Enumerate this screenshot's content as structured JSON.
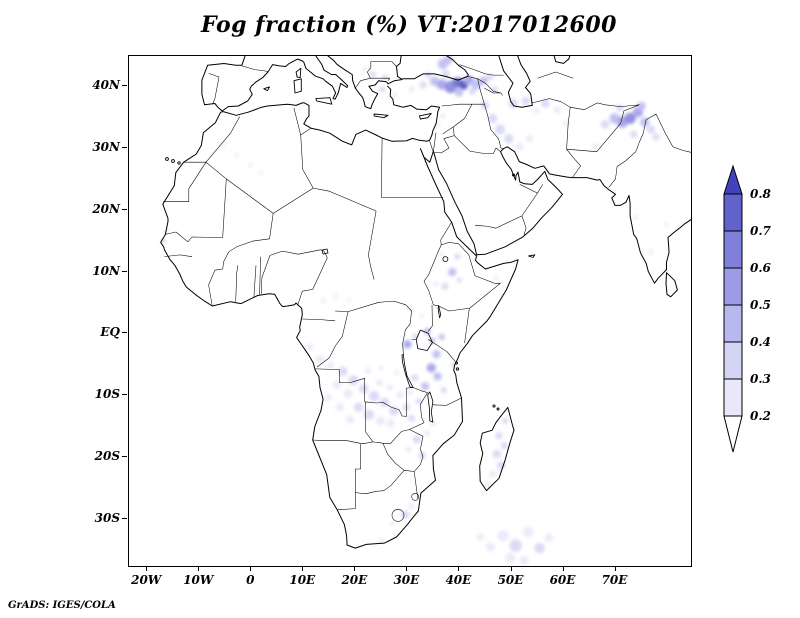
{
  "header": {
    "title": "Fog fraction (%) VT:2017012600"
  },
  "footer": {
    "credit": "GrADS: IGES/COLA"
  },
  "chart_data": {
    "type": "heatmap",
    "projection": "latlon",
    "title": "Fog fraction (%) VT:2017012600",
    "variable": "Fog fraction",
    "units": "%",
    "valid_time": "2017012600",
    "lon_ticks": [
      "20W",
      "10W",
      "0",
      "10E",
      "20E",
      "30E",
      "40E",
      "50E",
      "60E",
      "70E"
    ],
    "lon_tick_values": [
      -20,
      -10,
      0,
      10,
      20,
      30,
      40,
      50,
      60,
      70
    ],
    "lat_ticks": [
      "40N",
      "30N",
      "20N",
      "10N",
      "EQ",
      "10S",
      "20S",
      "30S"
    ],
    "lat_tick_values": [
      40,
      30,
      20,
      10,
      0,
      -10,
      -20,
      -30
    ],
    "lon_range": [
      -23.5,
      84.5
    ],
    "lat_range": [
      -37.7,
      44.9
    ],
    "grid": false,
    "colorbar": {
      "levels": [
        0.2,
        0.3,
        0.4,
        0.5,
        0.6,
        0.7,
        0.8
      ],
      "segments": [
        "#e8e8f8",
        "#d4d4f4",
        "#b8b8ee",
        "#9c9ce6",
        "#8080da",
        "#6262cc"
      ],
      "color_above": "#4242bc",
      "color_below": "#ffffff"
    },
    "fog_points_format": [
      "lon",
      "lat",
      "radius_deg",
      "fog_fraction"
    ],
    "fog_points": [
      [
        33.0,
        40.2,
        0.7,
        0.3
      ],
      [
        35.2,
        40.8,
        0.9,
        0.4
      ],
      [
        36.6,
        40.3,
        1.0,
        0.5
      ],
      [
        38.3,
        39.9,
        1.2,
        0.6
      ],
      [
        39.6,
        40.6,
        1.0,
        0.7
      ],
      [
        40.8,
        40.2,
        0.9,
        0.8
      ],
      [
        41.8,
        41.0,
        0.9,
        0.5
      ],
      [
        43.2,
        40.3,
        1.0,
        0.45
      ],
      [
        44.6,
        40.9,
        0.8,
        0.4
      ],
      [
        37.4,
        41.9,
        0.8,
        0.35
      ],
      [
        39.9,
        39.0,
        0.8,
        0.4
      ],
      [
        42.5,
        39.2,
        0.7,
        0.35
      ],
      [
        36.8,
        43.6,
        1.0,
        0.45
      ],
      [
        37.8,
        44.3,
        0.9,
        0.4
      ],
      [
        34.0,
        41.8,
        0.6,
        0.3
      ],
      [
        30.8,
        39.5,
        0.6,
        0.25
      ],
      [
        27.5,
        38.5,
        0.5,
        0.25
      ],
      [
        25.2,
        39.5,
        0.6,
        0.3
      ],
      [
        23.4,
        41.9,
        0.6,
        0.3
      ],
      [
        25.8,
        41.4,
        0.6,
        0.3
      ],
      [
        21.8,
        42.8,
        0.5,
        0.25
      ],
      [
        45.8,
        41.5,
        0.7,
        0.35
      ],
      [
        46.8,
        39.5,
        0.6,
        0.3
      ],
      [
        44.9,
        36.9,
        0.8,
        0.35
      ],
      [
        46.4,
        34.8,
        0.9,
        0.3
      ],
      [
        47.8,
        33.0,
        1.0,
        0.3
      ],
      [
        49.5,
        31.5,
        0.9,
        0.3
      ],
      [
        51.5,
        30.2,
        0.8,
        0.25
      ],
      [
        53.5,
        31.5,
        0.7,
        0.25
      ],
      [
        50.3,
        37.2,
        0.9,
        0.35
      ],
      [
        52.8,
        37.6,
        0.8,
        0.3
      ],
      [
        56.5,
        37.2,
        0.8,
        0.3
      ],
      [
        58.8,
        36.2,
        0.7,
        0.25
      ],
      [
        54.8,
        36.0,
        0.6,
        0.25
      ],
      [
        60.5,
        34.0,
        0.6,
        0.25
      ],
      [
        66.2,
        30.2,
        0.7,
        0.25
      ],
      [
        68.0,
        33.8,
        0.8,
        0.3
      ],
      [
        69.8,
        34.8,
        1.0,
        0.4
      ],
      [
        71.3,
        34.2,
        1.1,
        0.55
      ],
      [
        72.8,
        34.8,
        1.1,
        0.6
      ],
      [
        74.3,
        35.8,
        1.0,
        0.5
      ],
      [
        75.6,
        34.2,
        0.9,
        0.45
      ],
      [
        76.8,
        33.0,
        0.8,
        0.35
      ],
      [
        77.8,
        31.8,
        0.7,
        0.3
      ],
      [
        73.5,
        32.2,
        0.7,
        0.3
      ],
      [
        75.0,
        36.8,
        0.8,
        0.4
      ],
      [
        70.8,
        36.5,
        0.7,
        0.3
      ],
      [
        35.8,
        33.8,
        0.5,
        0.25
      ],
      [
        36.8,
        35.2,
        0.5,
        0.25
      ],
      [
        37.2,
        7.6,
        0.7,
        0.35
      ],
      [
        38.6,
        9.9,
        0.8,
        0.4
      ],
      [
        39.6,
        12.4,
        0.6,
        0.3
      ],
      [
        36.5,
        12.8,
        0.5,
        0.25
      ],
      [
        40.0,
        8.6,
        0.5,
        0.3
      ],
      [
        35.4,
        8.0,
        0.5,
        0.25
      ],
      [
        30.0,
        -1.8,
        0.8,
        0.5
      ],
      [
        31.5,
        -0.5,
        0.6,
        0.35
      ],
      [
        33.8,
        0.3,
        0.7,
        0.45
      ],
      [
        34.8,
        -1.2,
        0.6,
        0.4
      ],
      [
        36.6,
        -0.6,
        0.6,
        0.4
      ],
      [
        35.6,
        -3.4,
        0.8,
        0.45
      ],
      [
        34.6,
        -5.6,
        0.9,
        0.5
      ],
      [
        35.8,
        -7.0,
        0.8,
        0.4
      ],
      [
        33.4,
        -8.6,
        0.8,
        0.4
      ],
      [
        31.4,
        -7.2,
        0.7,
        0.35
      ],
      [
        37.0,
        -9.2,
        0.6,
        0.3
      ],
      [
        38.8,
        -5.2,
        0.5,
        0.3
      ],
      [
        11.2,
        -2.2,
        0.7,
        0.25
      ],
      [
        13.2,
        -4.2,
        0.8,
        0.25
      ],
      [
        15.2,
        -5.2,
        0.7,
        0.25
      ],
      [
        17.6,
        -6.2,
        0.9,
        0.3
      ],
      [
        19.6,
        -7.6,
        1.0,
        0.3
      ],
      [
        21.6,
        -9.0,
        0.9,
        0.3
      ],
      [
        23.6,
        -10.2,
        1.0,
        0.3
      ],
      [
        25.6,
        -11.2,
        0.9,
        0.3
      ],
      [
        27.4,
        -12.6,
        0.9,
        0.3
      ],
      [
        18.6,
        -9.8,
        0.9,
        0.25
      ],
      [
        20.6,
        -12.0,
        0.9,
        0.3
      ],
      [
        22.6,
        -13.2,
        1.0,
        0.3
      ],
      [
        24.8,
        -14.2,
        0.9,
        0.25
      ],
      [
        26.8,
        -14.6,
        0.8,
        0.25
      ],
      [
        16.4,
        -8.4,
        0.8,
        0.25
      ],
      [
        14.8,
        -10.4,
        0.7,
        0.2
      ],
      [
        17.0,
        -12.0,
        0.8,
        0.25
      ],
      [
        19.0,
        -14.0,
        0.8,
        0.25
      ],
      [
        28.6,
        -10.0,
        0.7,
        0.25
      ],
      [
        29.8,
        -12.0,
        0.7,
        0.3
      ],
      [
        30.8,
        -13.8,
        0.7,
        0.3
      ],
      [
        24.6,
        -8.0,
        0.7,
        0.25
      ],
      [
        26.6,
        -8.8,
        0.6,
        0.25
      ],
      [
        22.4,
        -6.0,
        0.6,
        0.2
      ],
      [
        25.0,
        -5.6,
        0.5,
        0.2
      ],
      [
        28.0,
        -6.4,
        0.5,
        0.2
      ],
      [
        30.4,
        -9.6,
        0.6,
        0.25
      ],
      [
        32.2,
        -11.0,
        0.6,
        0.3
      ],
      [
        13.8,
        5.2,
        0.5,
        0.2
      ],
      [
        16.2,
        6.0,
        0.5,
        0.2
      ],
      [
        18.8,
        5.4,
        0.4,
        0.2
      ],
      [
        30.8,
        3.8,
        0.5,
        0.25
      ],
      [
        32.8,
        2.8,
        0.4,
        0.2
      ],
      [
        31.8,
        -17.2,
        0.8,
        0.3
      ],
      [
        33.8,
        -16.2,
        0.6,
        0.25
      ],
      [
        30.2,
        -18.8,
        0.6,
        0.25
      ],
      [
        32.8,
        -19.8,
        0.7,
        0.3
      ],
      [
        34.8,
        -14.6,
        0.6,
        0.25
      ],
      [
        29.6,
        -29.4,
        0.8,
        0.3
      ],
      [
        30.8,
        -28.0,
        0.6,
        0.25
      ],
      [
        27.2,
        -30.8,
        0.5,
        0.2
      ],
      [
        25.0,
        -33.6,
        0.5,
        0.2
      ],
      [
        48.8,
        -14.2,
        0.6,
        0.3
      ],
      [
        47.6,
        -16.6,
        0.7,
        0.3
      ],
      [
        48.6,
        -18.2,
        0.7,
        0.35
      ],
      [
        47.2,
        -19.6,
        0.8,
        0.3
      ],
      [
        48.0,
        -21.4,
        0.8,
        0.3
      ],
      [
        46.4,
        -22.8,
        0.7,
        0.25
      ],
      [
        45.4,
        -24.6,
        0.6,
        0.25
      ],
      [
        46.0,
        -34.6,
        0.9,
        0.2
      ],
      [
        48.4,
        -32.8,
        1.1,
        0.25
      ],
      [
        50.8,
        -34.4,
        1.2,
        0.3
      ],
      [
        53.2,
        -32.2,
        1.0,
        0.25
      ],
      [
        55.4,
        -34.8,
        1.0,
        0.3
      ],
      [
        49.8,
        -36.4,
        1.0,
        0.25
      ],
      [
        57.2,
        -33.2,
        0.8,
        0.2
      ],
      [
        52.4,
        -36.8,
        0.9,
        0.25
      ],
      [
        44.0,
        -33.0,
        0.7,
        0.2
      ],
      [
        -16.9,
        14.9,
        0.5,
        0.35
      ],
      [
        -16.3,
        16.6,
        0.4,
        0.25
      ],
      [
        -0.2,
        27.2,
        0.4,
        0.2
      ],
      [
        -2.8,
        28.8,
        0.4,
        0.2
      ],
      [
        -5.4,
        30.2,
        0.4,
        0.2
      ],
      [
        1.8,
        26.0,
        0.35,
        0.2
      ],
      [
        73.8,
        18.8,
        0.5,
        0.2
      ],
      [
        76.8,
        13.2,
        0.5,
        0.2
      ],
      [
        79.8,
        17.6,
        0.4,
        0.2
      ],
      [
        43.8,
        17.2,
        0.4,
        0.2
      ],
      [
        47.0,
        9.0,
        0.4,
        0.2
      ]
    ]
  }
}
